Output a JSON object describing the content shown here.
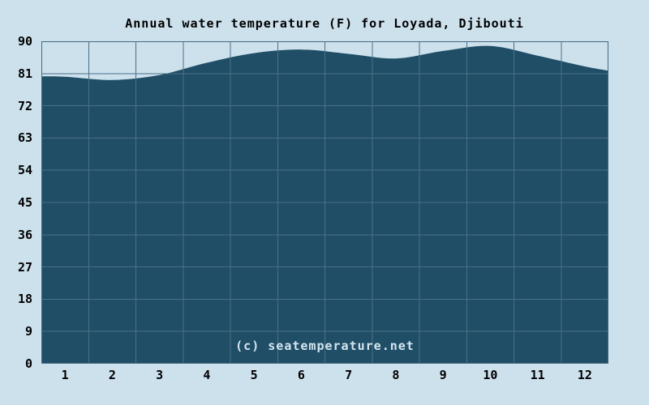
{
  "page": {
    "background": "#cde1ed"
  },
  "chart_data": {
    "type": "area",
    "title": "Annual water temperature (F) for Loyada, Djibouti",
    "watermark": "(c) seatemperature.net",
    "categories": [
      "1",
      "2",
      "3",
      "4",
      "5",
      "6",
      "7",
      "8",
      "9",
      "10",
      "11",
      "12"
    ],
    "series": [
      {
        "name": "Water temperature (F)",
        "values": [
          80.1,
          79.2,
          80.6,
          84.0,
          86.7,
          87.7,
          86.5,
          85.2,
          87.3,
          88.7,
          86.0,
          83.0
        ]
      }
    ],
    "edge_start_value": 80.2,
    "edge_end_value": 81.8,
    "y_ticks": [
      0,
      9,
      18,
      27,
      36,
      45,
      54,
      63,
      72,
      81,
      90
    ],
    "ylim": [
      0,
      90
    ],
    "xlabel": "",
    "ylabel": "",
    "grid": true,
    "legend": "none",
    "colors": {
      "background": "#cde1ed",
      "area_fill": "#204e67",
      "gridline": "#4b7086",
      "border": "#44687e",
      "tick_text": "#000000",
      "title_text": "#000000",
      "watermark_text": "#d4e6f0"
    }
  }
}
